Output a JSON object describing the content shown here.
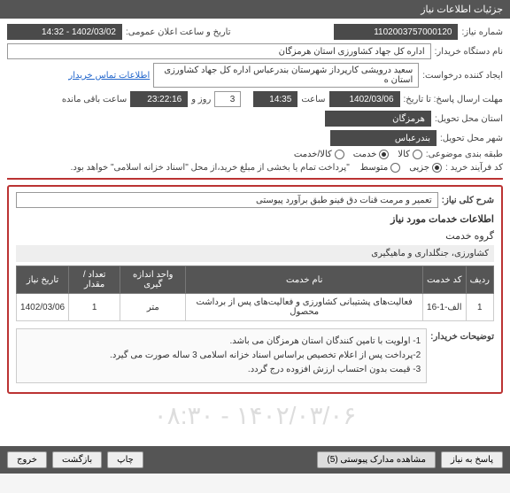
{
  "header": {
    "title": "جزئیات اطلاعات نیاز"
  },
  "form": {
    "need_no_label": "شماره نیاز:",
    "need_no": "1102003757000120",
    "announce_label": "تاریخ و ساعت اعلان عمومی:",
    "announce_val": "1402/03/02 - 14:32",
    "buyer_label": "نام دستگاه خریدار:",
    "buyer_val": "اداره کل جهاد کشاورزی استان هرمزگان",
    "creator_label": "ایجاد کننده درخواست:",
    "creator_val": "سعید درویشی کارپرداز شهرستان بندرعباس اداره کل جهاد کشاورزی استان ه",
    "contact_link": "اطلاعات تماس خریدار",
    "deadline_label": "مهلت ارسال پاسخ: تا تاریخ:",
    "deadline_date": "1402/03/06",
    "time_label": "ساعت",
    "deadline_time": "14:35",
    "day_word": "روز و",
    "days_left": "3",
    "remain_time": "23:22:16",
    "remain_label": "ساعت باقی مانده",
    "province_label": "استان محل تحویل:",
    "province_val": "هرمزگان",
    "city_label": "شهر محل تحویل:",
    "city_val": "بندرعباس",
    "class_label": "طبقه بندی موضوعی:",
    "radios_class": [
      {
        "label": "کالا",
        "checked": false
      },
      {
        "label": "خدمت",
        "checked": true
      },
      {
        "label": "کالا/خدمت",
        "checked": false
      }
    ],
    "process_label": "کد فرآیند خرید :",
    "radios_proc": [
      {
        "label": "جزیی",
        "checked": true
      },
      {
        "label": "متوسط",
        "checked": false
      }
    ],
    "process_note": "\"پرداخت تمام یا بخشی از مبلغ خرید،از محل \"اسناد خزانه اسلامی\" خواهد بود."
  },
  "detail": {
    "overall_label": "شرح کلی نیاز:",
    "overall_val": "تعمیر و مرمت قنات دق فینو طبق برآورد پیوستی",
    "services_label": "اطلاعات خدمات مورد نیاز",
    "group_label": "گروه خدمت",
    "group_val": "کشاورزی، جنگلداری و ماهیگیری",
    "table": {
      "cols": [
        "ردیف",
        "کد خدمت",
        "نام خدمت",
        "واحد اندازه گیری",
        "تعداد / مقدار",
        "تاریخ نیاز"
      ],
      "rows": [
        [
          "1",
          "الف-1-16",
          "فعالیت‌های پشتیبانی کشاورزی و فعالیت‌های پس از برداشت محصول",
          "متر",
          "1",
          "1402/03/06"
        ]
      ]
    },
    "buyer_notes_label": "توضیحات خریدار:",
    "buyer_notes": "1- اولویت با تامین کنندگان استان هرمزگان می باشد.\n2-پرداخت پس از اعلام تخصیص براساس اسناد خزانه اسلامی 3 ساله صورت می گیرد.\n3- قیمت بدون احتساب ارزش افزوده درج گردد."
  },
  "watermark": "۱۴۰۲/۰۳/۰۶ - ۰۸:۳۰",
  "footer": {
    "reply": "پاسخ به نیاز",
    "attach": "مشاهده مدارک پیوستی (5)",
    "print": "چاپ",
    "back": "بازگشت",
    "exit": "خروج"
  }
}
